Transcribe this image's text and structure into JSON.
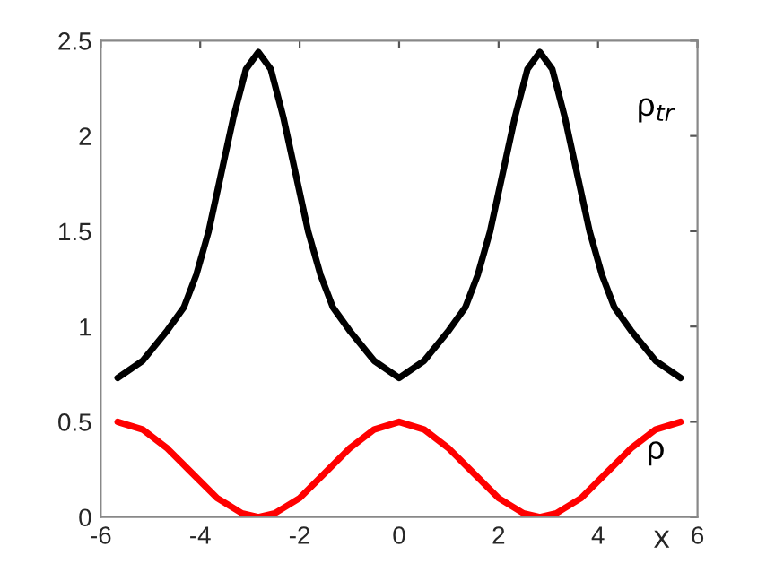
{
  "chart_data": {
    "type": "line",
    "xlabel": "x",
    "xlim": [
      -6,
      6
    ],
    "xticks": [
      -6,
      -4,
      -2,
      0,
      2,
      4,
      6
    ],
    "ylim": [
      0,
      2.5
    ],
    "yticks": [
      0,
      0.5,
      1,
      1.5,
      2,
      2.5
    ],
    "grid": false,
    "legend": false,
    "marker": "none",
    "line_style": "solid",
    "series": [
      {
        "name": "ρ$_{tr}$",
        "color": "#000000",
        "x": [
          -5.66,
          -5.16,
          -4.66,
          -4.33,
          -4.08,
          -3.83,
          -3.58,
          -3.33,
          -3.08,
          -2.83,
          -2.58,
          -2.33,
          -2.08,
          -1.83,
          -1.58,
          -1.33,
          -1.0,
          -0.5,
          0,
          0.5,
          1.0,
          1.33,
          1.58,
          1.83,
          2.08,
          2.33,
          2.58,
          2.83,
          3.08,
          3.33,
          3.58,
          3.83,
          4.08,
          4.33,
          4.66,
          5.16,
          5.66
        ],
        "values": [
          0.73,
          0.82,
          0.98,
          1.1,
          1.27,
          1.5,
          1.8,
          2.1,
          2.35,
          2.44,
          2.35,
          2.1,
          1.8,
          1.5,
          1.27,
          1.1,
          0.98,
          0.82,
          0.73,
          0.82,
          0.98,
          1.1,
          1.27,
          1.5,
          1.8,
          2.1,
          2.35,
          2.44,
          2.35,
          2.1,
          1.8,
          1.5,
          1.27,
          1.1,
          0.98,
          0.82,
          0.73
        ]
      },
      {
        "name": "ρ",
        "color": "#ff0000",
        "x": [
          -5.66,
          -5.16,
          -4.66,
          -4.16,
          -3.66,
          -3.16,
          -2.83,
          -2.5,
          -2,
          -1.5,
          -1,
          -0.5,
          0,
          0.5,
          1,
          1.5,
          2,
          2.5,
          2.83,
          3.16,
          3.66,
          4.16,
          4.66,
          5.16,
          5.66
        ],
        "values": [
          0.5,
          0.46,
          0.36,
          0.23,
          0.1,
          0.02,
          0,
          0.02,
          0.1,
          0.23,
          0.36,
          0.46,
          0.5,
          0.46,
          0.36,
          0.23,
          0.1,
          0.02,
          0,
          0.02,
          0.1,
          0.23,
          0.36,
          0.46,
          0.5
        ]
      }
    ]
  }
}
